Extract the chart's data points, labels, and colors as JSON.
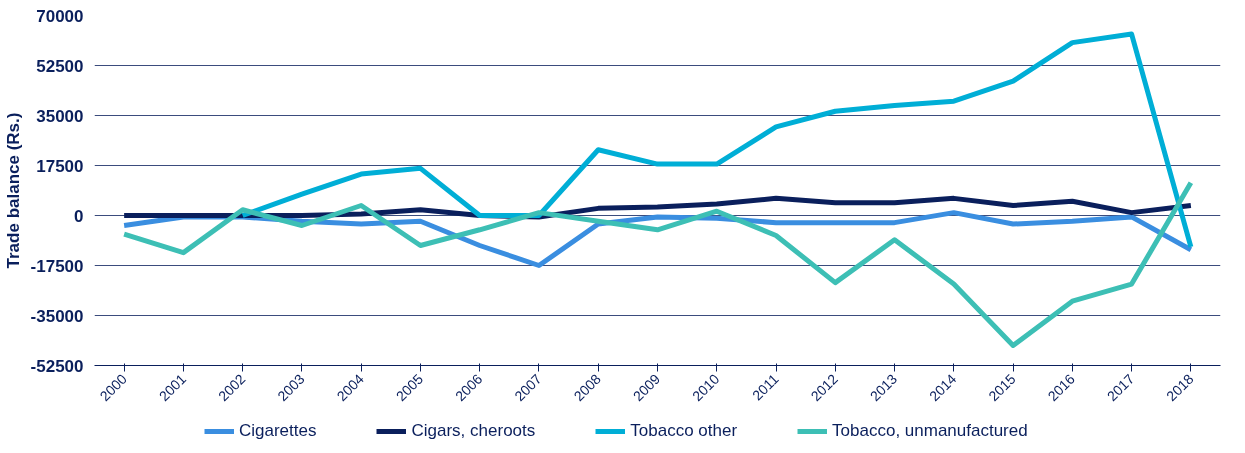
{
  "chart_data": {
    "type": "line",
    "ylabel": "Trade balance (Rs.)",
    "categories": [
      "2000",
      "2001",
      "2002",
      "2003",
      "2004",
      "2005",
      "2006",
      "2007",
      "2008",
      "2009",
      "2010",
      "2011",
      "2012",
      "2013",
      "2014",
      "2015",
      "2016",
      "2017",
      "2018"
    ],
    "series": [
      {
        "name": "Cigarettes",
        "color": "#3a8ee0",
        "values": [
          -3500,
          -500,
          -500,
          -2000,
          -3000,
          -2000,
          -10500,
          -17500,
          -3000,
          -500,
          -1000,
          -2500,
          -2500,
          -2500,
          1000,
          -3000,
          -2000,
          -500,
          -12000
        ]
      },
      {
        "name": "Cigars, cheroots",
        "color": "#0a1f5c",
        "values": [
          0,
          0,
          0,
          0,
          500,
          2000,
          0,
          -500,
          2500,
          3000,
          4000,
          6000,
          4500,
          4500,
          6000,
          3500,
          5000,
          1000,
          3500
        ]
      },
      {
        "name": "Tobacco other",
        "color": "#00aed6",
        "values": [
          null,
          null,
          0,
          7500,
          14500,
          16500,
          0,
          0,
          23000,
          18000,
          18000,
          31000,
          36500,
          38500,
          40000,
          47000,
          60500,
          63500,
          -11000
        ]
      },
      {
        "name": "Tobacco, unmanufactured",
        "color": "#3dbfb5",
        "values": [
          -6500,
          -13000,
          2000,
          -3500,
          3500,
          -10500,
          -5000,
          1000,
          -2000,
          -5000,
          1500,
          -7000,
          -23500,
          -8500,
          -24000,
          -45500,
          -30000,
          -24000,
          11500
        ]
      }
    ],
    "ylim": [
      -52500,
      70000
    ],
    "yticks": [
      -52500,
      -35000,
      -17500,
      0,
      17500,
      35000,
      52500,
      70000
    ],
    "grid": "y",
    "legend": "bottom",
    "line_style": "solid",
    "marker": "none"
  }
}
